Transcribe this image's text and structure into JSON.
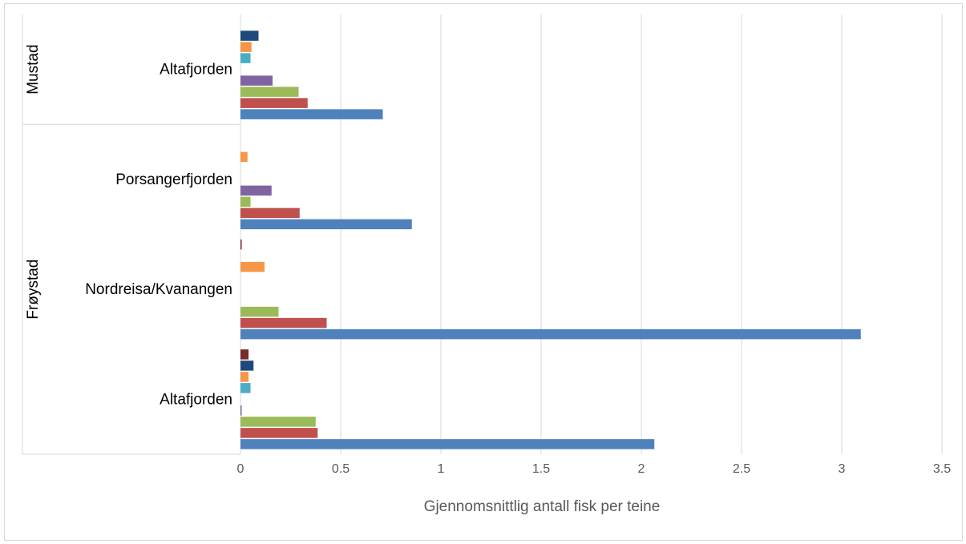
{
  "chart_data": {
    "type": "bar",
    "orientation": "horizontal",
    "xlabel": "Gjennomsnittlig antall fisk per teine",
    "xlim": [
      0,
      3.5
    ],
    "xticks": [
      "0",
      "0.5",
      "1",
      "1.5",
      "2",
      "2.5",
      "3",
      "3.5"
    ],
    "grid": true,
    "legend": "none",
    "groups": [
      {
        "name": "Mustad",
        "categories": [
          {
            "name": "Altafjorden",
            "values": [
              0.71,
              0.335,
              0.29,
              0.16,
              0.0,
              0.05,
              0.055,
              0.09,
              0.0
            ]
          }
        ]
      },
      {
        "name": "Frøystad",
        "categories": [
          {
            "name": "Porsangerfjorden",
            "values": [
              0.855,
              0.295,
              0.05,
              0.155,
              0.0,
              0.0,
              0.035,
              0.0,
              0.0
            ]
          },
          {
            "name": "Nordreisa/Kvanangen",
            "values": [
              3.095,
              0.43,
              0.19,
              0.0,
              0.0,
              0.0,
              0.12,
              0.0,
              0.005
            ]
          },
          {
            "name": "Altafjorden",
            "values": [
              2.065,
              0.385,
              0.375,
              0.005,
              0.0,
              0.05,
              0.04,
              0.065,
              0.04
            ]
          }
        ]
      }
    ],
    "series_colors": [
      "#4f81bd",
      "#c0504d",
      "#9bbb59",
      "#8064a2",
      "#4bacc6",
      "#4bacc6",
      "#f79646",
      "#1f497d",
      "#772c2a"
    ]
  }
}
